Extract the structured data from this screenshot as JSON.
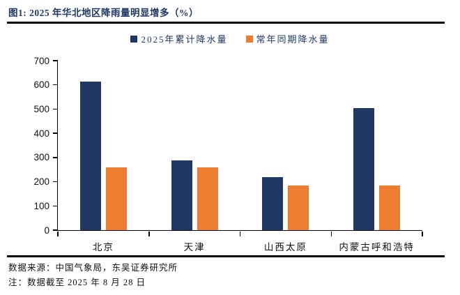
{
  "title": "图1:  2025 年华北地区降雨量明显增多（%）",
  "legend": [
    {
      "label": "2025年累计降水量",
      "color": "#1f3864"
    },
    {
      "label": "常年同期降水量",
      "color": "#ed7d31"
    }
  ],
  "chart_data": {
    "type": "bar",
    "title": "2025 年华北地区降雨量明显增多（%）",
    "categories": [
      "北京",
      "天津",
      "山西太原",
      "内蒙古呼和浩特"
    ],
    "series": [
      {
        "name": "2025年累计降水量",
        "color": "#1f3864",
        "values": [
          615,
          288,
          218,
          505
        ]
      },
      {
        "name": "常年同期降水量",
        "color": "#ed7d31",
        "values": [
          260,
          258,
          185,
          185
        ]
      }
    ],
    "xlabel": "",
    "ylabel": "",
    "ylim": [
      0,
      700
    ],
    "yticks": [
      0,
      100,
      200,
      300,
      400,
      500,
      600,
      700
    ],
    "grid": false,
    "legend_position": "top-center"
  },
  "footer": {
    "source": "数据来源：中国气象局，东吴证券研究所",
    "note": "注：数据截至 2025 年 8 月 28 日"
  },
  "colors": {
    "series_2025": "#1f3864",
    "series_normal": "#ed7d31",
    "title_text": "#1f3864",
    "rule": "#000000",
    "axis": "#000000",
    "background": "#ffffff"
  }
}
